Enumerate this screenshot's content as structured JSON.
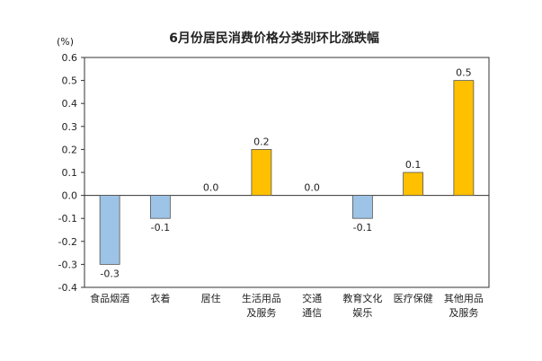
{
  "chart_data": {
    "type": "bar",
    "title": "6月份居民消费价格分类别环比涨跌幅",
    "ylabel": "(%)",
    "xlabel": "",
    "ylim": [
      -0.4,
      0.6
    ],
    "yticks": [
      0.6,
      0.5,
      0.4,
      0.3,
      0.2,
      0.1,
      0.0,
      -0.1,
      -0.2,
      -0.3,
      -0.4
    ],
    "ytick_labels": [
      "0.6",
      "0.5",
      "0.4",
      "0.3",
      "0.2",
      "0.1",
      "0.0",
      "-0.1",
      "-0.2",
      "-0.3",
      "-0.4"
    ],
    "grid": false,
    "categories": [
      [
        "食品烟酒"
      ],
      [
        "衣着"
      ],
      [
        "居住"
      ],
      [
        "生活用品",
        "及服务"
      ],
      [
        "交通",
        "通信"
      ],
      [
        "教育文化",
        "娱乐"
      ],
      [
        "医疗保健"
      ],
      [
        "其他用品",
        "及服务"
      ]
    ],
    "values": [
      -0.3,
      -0.1,
      0.0,
      0.2,
      0.0,
      -0.1,
      0.1,
      0.5
    ],
    "value_labels": [
      "-0.3",
      "-0.1",
      "0.0",
      "0.2",
      "0.0",
      "-0.1",
      "0.1",
      "0.5"
    ],
    "colors": {
      "positive": "#FFC000",
      "negative": "#9DC3E6",
      "bar_edge": "#555555",
      "axis": "#333333"
    }
  }
}
